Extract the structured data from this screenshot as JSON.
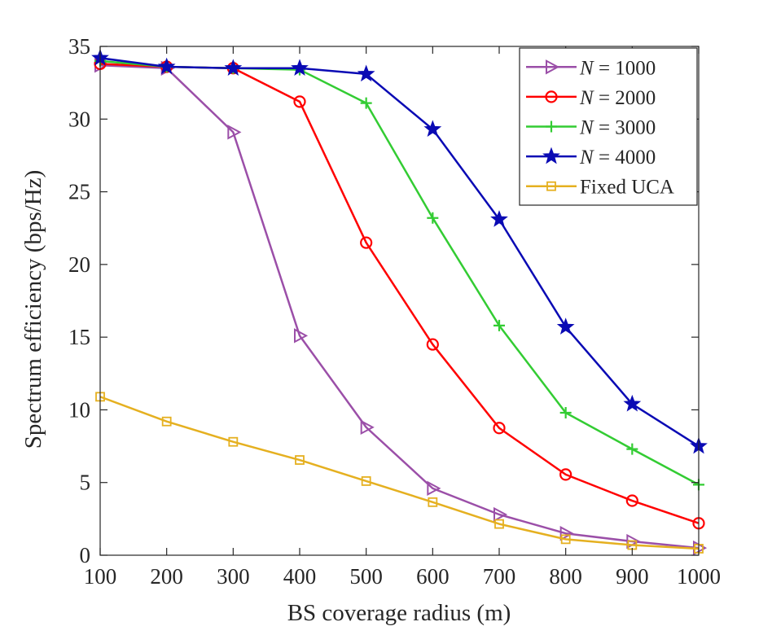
{
  "chart_data": {
    "type": "line",
    "title": "",
    "xlabel": "BS coverage radius (m)",
    "ylabel": "Spectrum efficiency (bps/Hz)",
    "xlim": [
      100,
      1000
    ],
    "ylim": [
      0,
      35
    ],
    "x": [
      100,
      200,
      300,
      400,
      500,
      600,
      700,
      800,
      900,
      1000
    ],
    "xticks": [
      100,
      200,
      300,
      400,
      500,
      600,
      700,
      800,
      900,
      1000
    ],
    "yticks": [
      0,
      5,
      10,
      15,
      20,
      25,
      30,
      35
    ],
    "grid": false,
    "legend_position": "top-right",
    "series": [
      {
        "name": "N = 1000",
        "legend_var": "N",
        "legend_rest": " = 1000",
        "color": "#9b4fa8",
        "marker": "triangle-right",
        "values": [
          33.7,
          33.5,
          29.1,
          15.1,
          8.8,
          4.6,
          2.8,
          1.5,
          0.95,
          0.5
        ]
      },
      {
        "name": "N = 2000",
        "legend_var": "N",
        "legend_rest": " = 2000",
        "color": "#ff0000",
        "marker": "circle",
        "values": [
          33.8,
          33.6,
          33.5,
          31.2,
          21.5,
          14.5,
          8.75,
          5.55,
          3.75,
          2.2
        ]
      },
      {
        "name": "N = 3000",
        "legend_var": "N",
        "legend_rest": " = 3000",
        "color": "#33cc33",
        "marker": "plus",
        "values": [
          34.0,
          33.6,
          33.5,
          33.4,
          31.1,
          23.2,
          15.8,
          9.8,
          7.3,
          4.85
        ]
      },
      {
        "name": "N = 4000",
        "legend_var": "N",
        "legend_rest": " = 4000",
        "color": "#0a0ab4",
        "marker": "star",
        "values": [
          34.2,
          33.6,
          33.5,
          33.5,
          33.1,
          29.3,
          23.1,
          15.7,
          10.4,
          7.5
        ]
      },
      {
        "name": "Fixed UCA",
        "legend_var": "",
        "legend_rest": "Fixed UCA",
        "color": "#e5b020",
        "marker": "square",
        "values": [
          10.9,
          9.2,
          7.8,
          6.55,
          5.1,
          3.65,
          2.15,
          1.1,
          0.7,
          0.45
        ]
      }
    ]
  }
}
